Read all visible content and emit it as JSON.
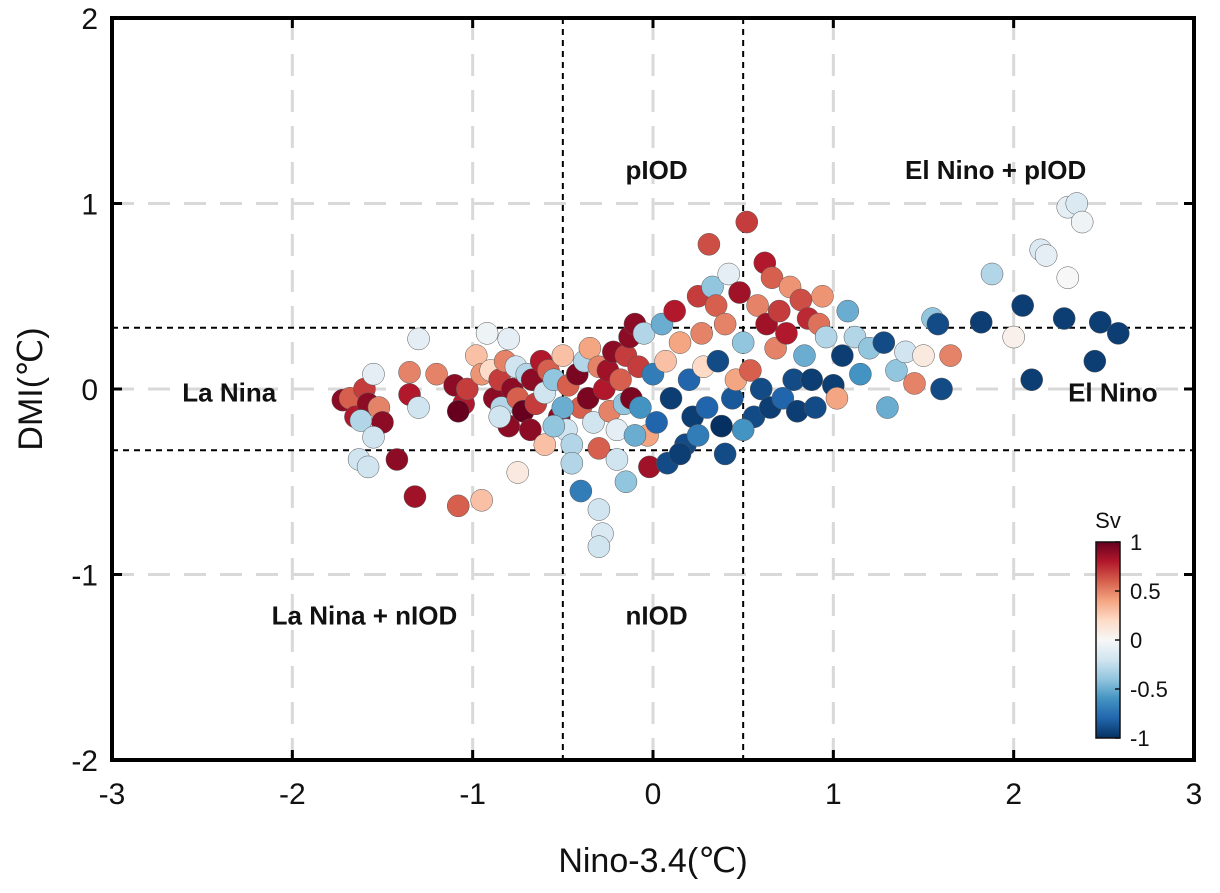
{
  "chart_data": {
    "type": "scatter",
    "title": "",
    "xlabel": "Nino-3.4(℃)",
    "ylabel": "DMI(℃)",
    "xlim": [
      -3,
      3
    ],
    "ylim": [
      -2,
      2
    ],
    "xticks": [
      "-3",
      "-2",
      "-1",
      "0",
      "1",
      "2",
      "3"
    ],
    "yticks": [
      "-2",
      "-1",
      "0",
      "1",
      "2"
    ],
    "grid": true,
    "thresholds": {
      "x": [
        -0.5,
        0.5
      ],
      "y": [
        -0.33,
        0.33
      ]
    },
    "regions": [
      {
        "label": "pIOD",
        "x": 0.02,
        "y": 1.18
      },
      {
        "label": "El Nino + pIOD",
        "x": 1.9,
        "y": 1.18
      },
      {
        "label": "La Nina",
        "x": -2.35,
        "y": -0.02
      },
      {
        "label": "El Nino",
        "x": 2.55,
        "y": -0.02
      },
      {
        "label": "La Nina + nIOD",
        "x": -1.6,
        "y": -1.22
      },
      {
        "label": "nIOD",
        "x": 0.02,
        "y": -1.22
      }
    ],
    "colorbar": {
      "title": "Sv",
      "min": -1,
      "max": 1,
      "ticks": [
        "1",
        "0.5",
        "0",
        "-0.5",
        "-1"
      ],
      "colormap": [
        "#053061",
        "#2166ac",
        "#4393c3",
        "#92c5de",
        "#d1e5f0",
        "#f7f7f7",
        "#fddbc7",
        "#f4a582",
        "#d6604d",
        "#b2182b",
        "#67001f"
      ]
    },
    "points": [
      [
        -1.72,
        -0.06,
        0.9
      ],
      [
        -1.68,
        -0.05,
        0.6
      ],
      [
        -1.65,
        -0.15,
        0.8
      ],
      [
        -1.6,
        0.0,
        0.7
      ],
      [
        -1.58,
        -0.08,
        0.9
      ],
      [
        -1.55,
        0.08,
        -0.1
      ],
      [
        -1.52,
        -0.1,
        0.5
      ],
      [
        -1.5,
        -0.18,
        0.9
      ],
      [
        -1.62,
        -0.17,
        -0.3
      ],
      [
        -1.55,
        -0.26,
        -0.2
      ],
      [
        -1.63,
        -0.38,
        -0.2
      ],
      [
        -1.58,
        -0.42,
        -0.2
      ],
      [
        -1.42,
        -0.38,
        0.9
      ],
      [
        -1.32,
        -0.58,
        0.85
      ],
      [
        -1.35,
        -0.03,
        0.8
      ],
      [
        -1.3,
        -0.1,
        -0.2
      ],
      [
        -1.3,
        0.27,
        -0.1
      ],
      [
        -1.35,
        0.09,
        0.5
      ],
      [
        -1.2,
        0.08,
        0.5
      ],
      [
        -1.08,
        -0.63,
        0.6
      ],
      [
        -0.95,
        -0.6,
        0.3
      ],
      [
        -1.1,
        0.02,
        0.9
      ],
      [
        -1.05,
        -0.08,
        0.8
      ],
      [
        -1.08,
        -0.12,
        1.0
      ],
      [
        -1.03,
        0.0,
        0.7
      ],
      [
        -0.98,
        0.18,
        0.3
      ],
      [
        -0.95,
        0.08,
        0.45
      ],
      [
        -0.92,
        0.3,
        -0.05
      ],
      [
        -0.9,
        0.1,
        0.2
      ],
      [
        -0.88,
        -0.05,
        0.9
      ],
      [
        -0.85,
        0.05,
        0.7
      ],
      [
        -0.84,
        -0.1,
        -0.3
      ],
      [
        -0.82,
        0.15,
        0.5
      ],
      [
        -0.8,
        0.27,
        -0.1
      ],
      [
        -0.8,
        -0.2,
        0.9
      ],
      [
        -0.78,
        0.0,
        0.9
      ],
      [
        -0.76,
        0.12,
        -0.2
      ],
      [
        -0.75,
        -0.05,
        0.6
      ],
      [
        -0.72,
        -0.12,
        1.0
      ],
      [
        -0.7,
        0.08,
        -0.3
      ],
      [
        -0.68,
        -0.22,
        0.9
      ],
      [
        -0.67,
        0.05,
        0.9
      ],
      [
        -0.65,
        -0.08,
        0.7
      ],
      [
        -0.62,
        0.15,
        0.8
      ],
      [
        -0.6,
        -0.02,
        -0.2
      ],
      [
        -0.58,
        0.1,
        0.6
      ],
      [
        -0.55,
        0.05,
        -0.4
      ],
      [
        -0.52,
        -0.15,
        0.9
      ],
      [
        -0.5,
        0.18,
        0.3
      ],
      [
        -0.48,
        -0.22,
        -0.2
      ],
      [
        -0.47,
        0.02,
        0.6
      ],
      [
        -0.45,
        -0.3,
        -0.3
      ],
      [
        -0.42,
        0.08,
        0.95
      ],
      [
        -0.4,
        -0.1,
        0.6
      ],
      [
        -0.38,
        0.15,
        -0.3
      ],
      [
        -0.36,
        -0.05,
        0.95
      ],
      [
        -0.35,
        0.22,
        0.4
      ],
      [
        -0.33,
        -0.18,
        -0.2
      ],
      [
        -0.3,
        0.12,
        0.5
      ],
      [
        -0.3,
        -0.32,
        0.6
      ],
      [
        -0.27,
        0.0,
        0.8
      ],
      [
        -0.25,
        0.1,
        0.85
      ],
      [
        -0.24,
        -0.12,
        0.5
      ],
      [
        -0.22,
        0.2,
        0.9
      ],
      [
        -0.2,
        -0.22,
        -0.1
      ],
      [
        -0.18,
        0.05,
        0.6
      ],
      [
        -0.16,
        -0.08,
        -0.4
      ],
      [
        -0.15,
        0.18,
        0.7
      ],
      [
        -0.13,
        0.28,
        0.9
      ],
      [
        -0.12,
        -0.05,
        0.95
      ],
      [
        -0.1,
        0.35,
        0.9
      ],
      [
        -0.08,
        0.12,
        0.7
      ],
      [
        -0.07,
        -0.1,
        -0.6
      ],
      [
        -0.05,
        0.3,
        -0.3
      ],
      [
        -0.03,
        -0.25,
        0.4
      ],
      [
        -0.02,
        -0.42,
        0.85
      ],
      [
        0.0,
        0.08,
        -0.7
      ],
      [
        0.02,
        -0.18,
        -0.8
      ],
      [
        0.05,
        0.35,
        -0.5
      ],
      [
        0.07,
        0.15,
        0.3
      ],
      [
        0.1,
        -0.05,
        -0.95
      ],
      [
        0.12,
        0.42,
        0.8
      ],
      [
        0.15,
        0.25,
        0.4
      ],
      [
        0.18,
        -0.3,
        -0.9
      ],
      [
        0.2,
        0.05,
        -0.8
      ],
      [
        0.22,
        -0.15,
        -0.95
      ],
      [
        0.25,
        0.5,
        0.7
      ],
      [
        0.27,
        0.3,
        0.5
      ],
      [
        0.28,
        0.12,
        0.2
      ],
      [
        0.3,
        -0.1,
        -0.8
      ],
      [
        0.31,
        0.78,
        0.65
      ],
      [
        0.33,
        0.55,
        -0.4
      ],
      [
        0.35,
        0.45,
        0.6
      ],
      [
        0.36,
        0.15,
        -0.9
      ],
      [
        0.38,
        -0.2,
        -1.0
      ],
      [
        0.4,
        0.35,
        0.5
      ],
      [
        0.42,
        0.62,
        -0.1
      ],
      [
        0.44,
        -0.05,
        -0.85
      ],
      [
        0.46,
        0.05,
        0.4
      ],
      [
        0.48,
        0.52,
        0.85
      ],
      [
        0.5,
        0.25,
        -0.4
      ],
      [
        0.52,
        0.9,
        0.7
      ],
      [
        0.54,
        0.1,
        0.6
      ],
      [
        0.56,
        -0.15,
        -0.9
      ],
      [
        0.58,
        0.45,
        0.5
      ],
      [
        0.6,
        0.0,
        -0.9
      ],
      [
        0.62,
        0.68,
        0.8
      ],
      [
        0.63,
        0.35,
        0.85
      ],
      [
        0.65,
        -0.1,
        -0.95
      ],
      [
        0.66,
        0.6,
        0.6
      ],
      [
        0.68,
        0.22,
        0.5
      ],
      [
        0.7,
        0.42,
        0.7
      ],
      [
        0.72,
        -0.05,
        -0.8
      ],
      [
        0.74,
        0.3,
        0.8
      ],
      [
        0.76,
        0.55,
        0.45
      ],
      [
        0.78,
        0.05,
        -0.9
      ],
      [
        0.8,
        -0.12,
        -0.95
      ],
      [
        0.82,
        0.48,
        0.65
      ],
      [
        0.84,
        0.18,
        -0.5
      ],
      [
        0.86,
        0.38,
        0.75
      ],
      [
        0.88,
        0.05,
        -0.95
      ],
      [
        0.9,
        -0.1,
        -0.9
      ],
      [
        0.92,
        0.35,
        0.55
      ],
      [
        0.94,
        0.5,
        0.45
      ],
      [
        0.96,
        0.28,
        -0.3
      ],
      [
        1.0,
        0.02,
        -0.95
      ],
      [
        1.02,
        -0.05,
        0.4
      ],
      [
        1.05,
        0.18,
        -0.95
      ],
      [
        1.08,
        0.42,
        -0.5
      ],
      [
        1.12,
        0.28,
        -0.3
      ],
      [
        1.15,
        0.08,
        -0.6
      ],
      [
        1.2,
        0.22,
        -0.4
      ],
      [
        1.28,
        0.25,
        -0.9
      ],
      [
        1.3,
        -0.1,
        -0.5
      ],
      [
        1.35,
        0.1,
        -0.4
      ],
      [
        1.4,
        0.2,
        -0.2
      ],
      [
        1.45,
        0.03,
        0.5
      ],
      [
        1.5,
        0.18,
        0.1
      ],
      [
        1.55,
        0.38,
        -0.4
      ],
      [
        1.58,
        0.35,
        -0.9
      ],
      [
        1.6,
        0.0,
        -0.9
      ],
      [
        1.65,
        0.18,
        0.5
      ],
      [
        1.82,
        0.36,
        -0.95
      ],
      [
        1.88,
        0.62,
        -0.3
      ],
      [
        2.0,
        0.28,
        0.05
      ],
      [
        2.05,
        0.45,
        -0.95
      ],
      [
        2.1,
        0.05,
        -0.95
      ],
      [
        2.15,
        0.75,
        -0.15
      ],
      [
        2.28,
        0.38,
        -0.95
      ],
      [
        2.3,
        0.98,
        -0.1
      ],
      [
        2.35,
        1.0,
        -0.15
      ],
      [
        2.38,
        0.9,
        -0.05
      ],
      [
        2.45,
        0.15,
        -0.95
      ],
      [
        2.48,
        0.36,
        -0.95
      ],
      [
        2.3,
        0.6,
        0.0
      ],
      [
        2.58,
        0.3,
        -0.95
      ],
      [
        2.18,
        0.72,
        -0.1
      ],
      [
        -0.4,
        -0.55,
        -0.7
      ],
      [
        -0.3,
        -0.65,
        -0.2
      ],
      [
        -0.28,
        -0.78,
        -0.15
      ],
      [
        -0.3,
        -0.85,
        -0.2
      ],
      [
        -0.15,
        -0.5,
        -0.4
      ],
      [
        -0.1,
        -0.25,
        -0.5
      ],
      [
        0.08,
        -0.4,
        -0.9
      ],
      [
        0.15,
        -0.35,
        -0.95
      ],
      [
        -0.2,
        -0.38,
        -0.2
      ],
      [
        -0.45,
        -0.4,
        -0.3
      ],
      [
        -0.6,
        -0.3,
        0.3
      ],
      [
        -0.75,
        -0.45,
        0.1
      ],
      [
        -0.85,
        -0.15,
        -0.2
      ],
      [
        0.25,
        -0.25,
        -0.7
      ],
      [
        0.4,
        -0.35,
        -0.9
      ],
      [
        0.5,
        -0.22,
        -0.6
      ],
      [
        -0.5,
        -0.1,
        -0.5
      ],
      [
        -0.55,
        -0.2,
        -0.4
      ]
    ]
  }
}
